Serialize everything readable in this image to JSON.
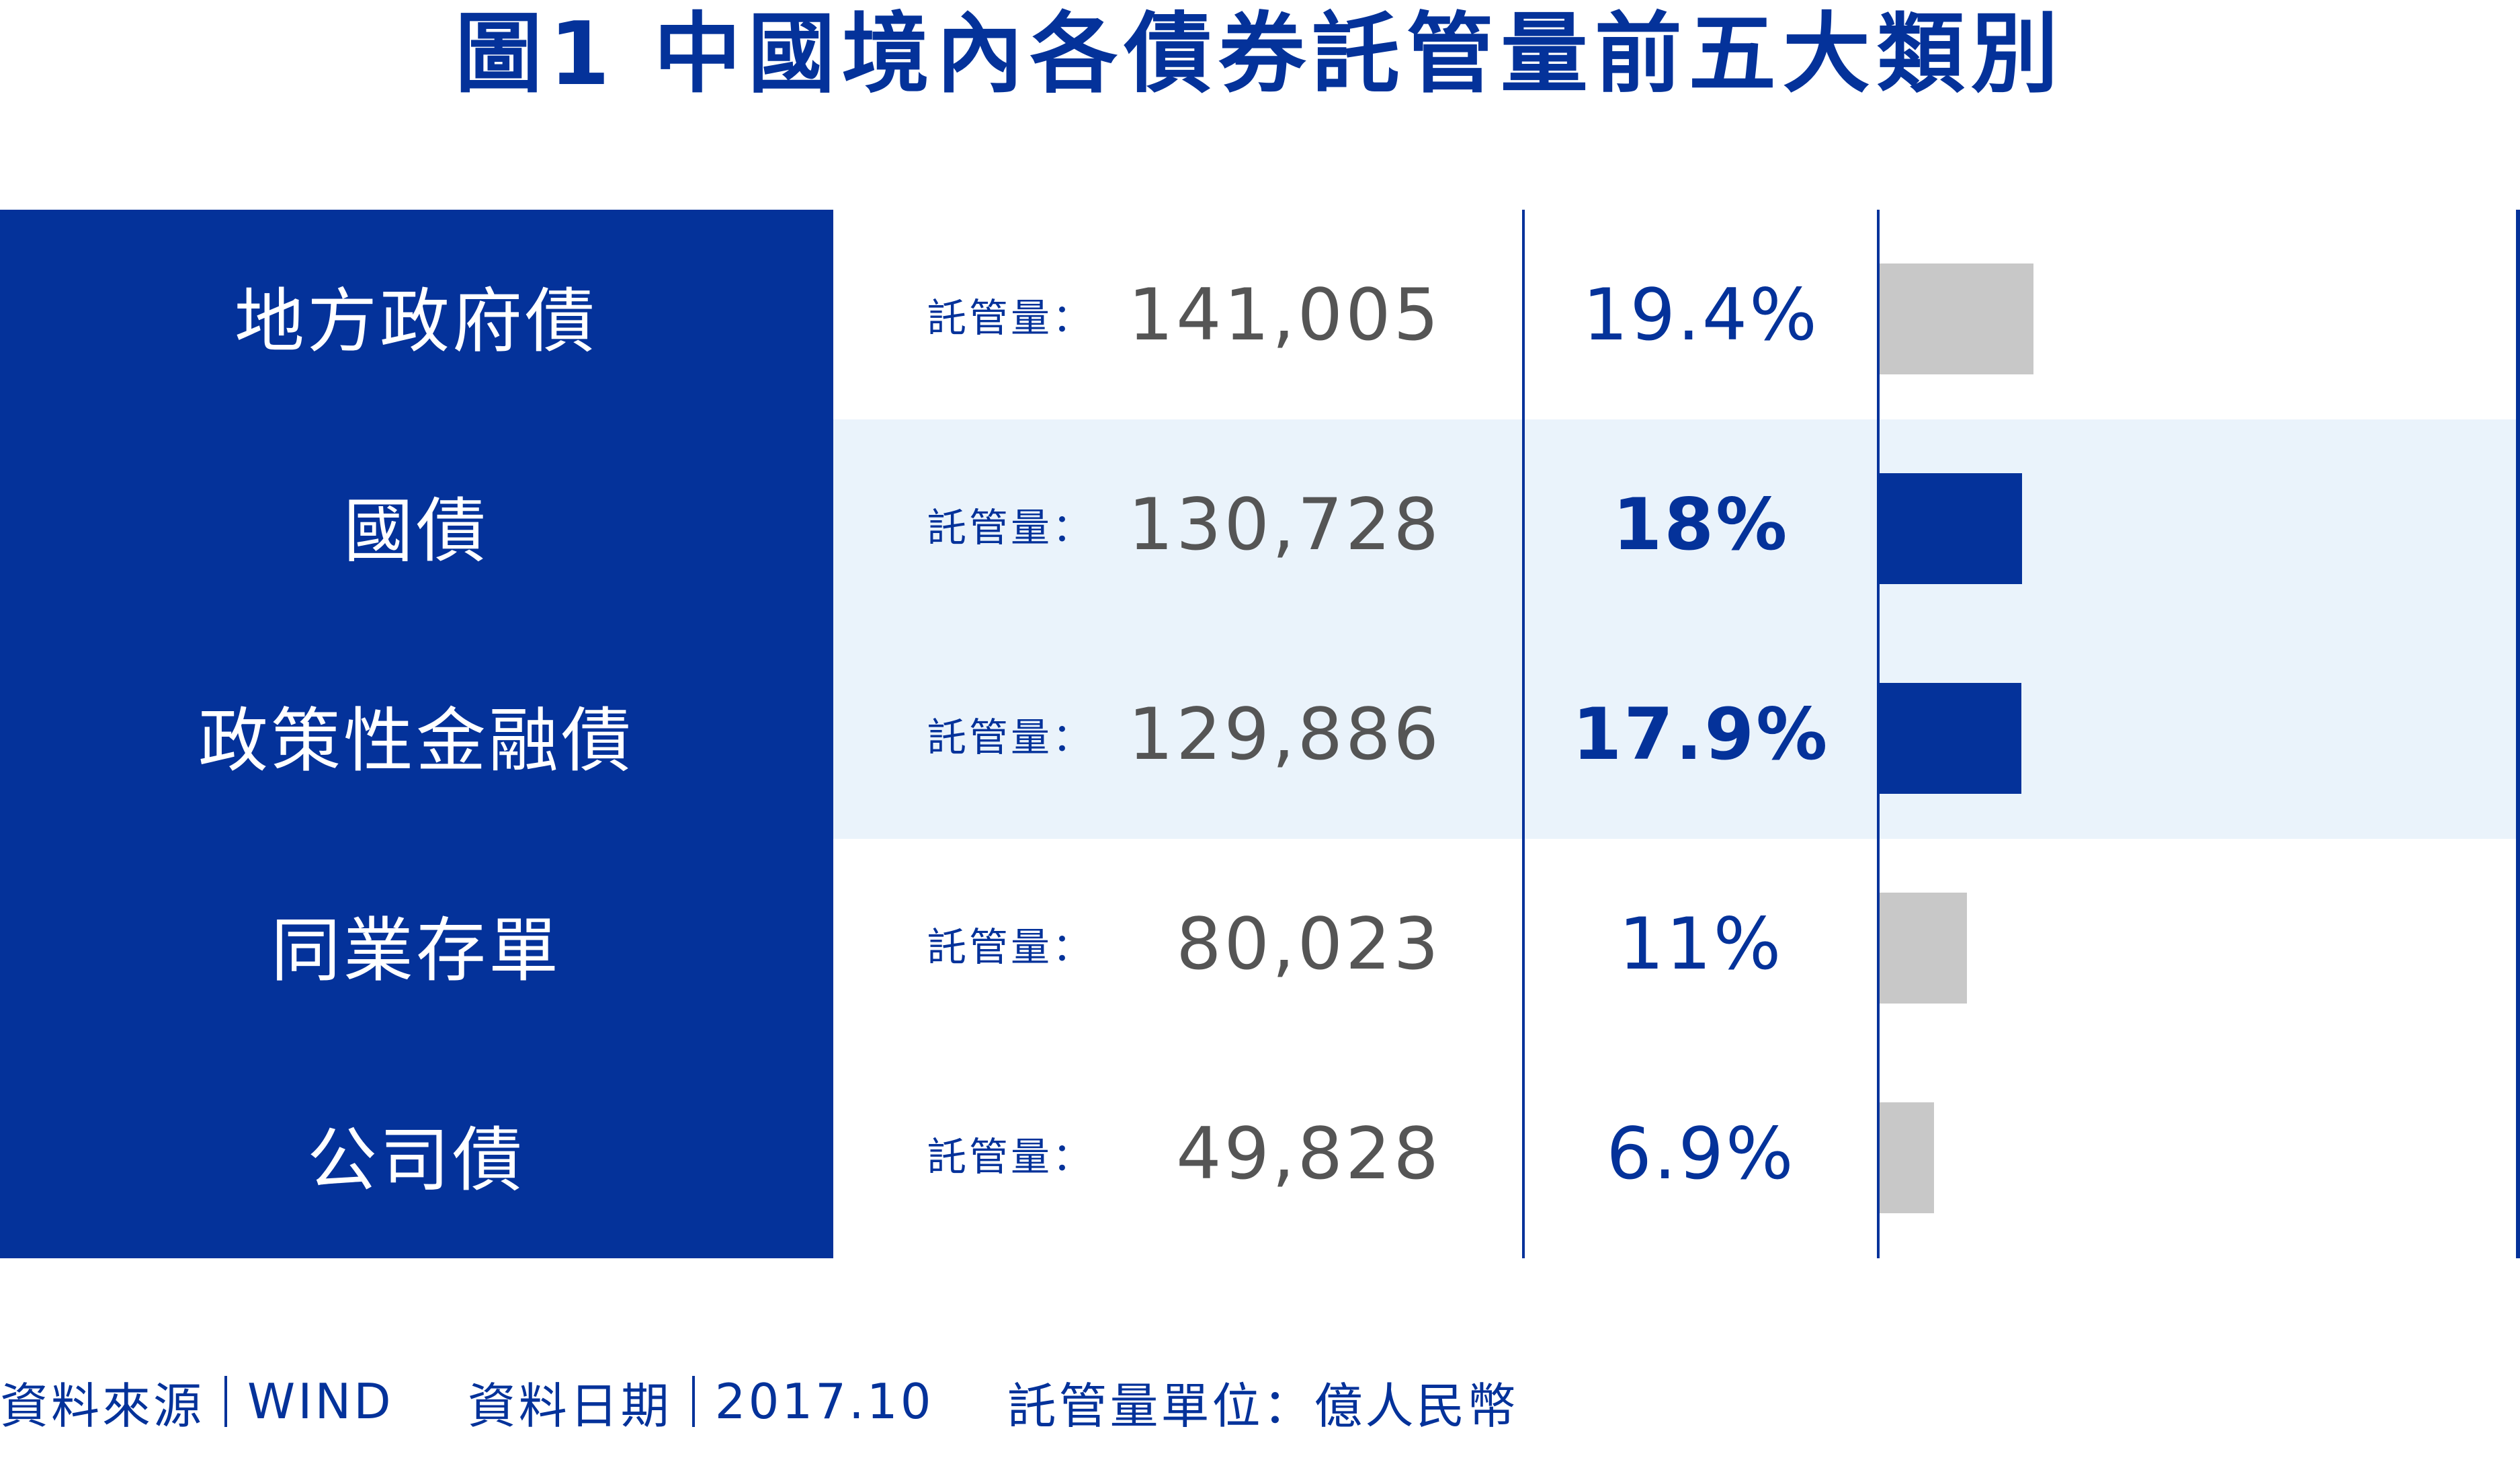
{
  "title": "圖1  中國境內各債券託管量前五大類別",
  "colors": {
    "navy": "#04329a",
    "highlight_bg": "#eaf3fb",
    "grey_bar": "#c8c8c8"
  },
  "chart_data": {
    "type": "table",
    "title": "圖1  中國境內各債券託管量前五大類別",
    "value_label": "託管量：",
    "rows": [
      {
        "category": "地方政府債",
        "value_text": "141,005",
        "value": 141005,
        "share_text": "19.4%",
        "share": 19.4,
        "highlighted": false,
        "bar_color": "#c8c8c8"
      },
      {
        "category": "國債",
        "value_text": "130,728",
        "value": 130728,
        "share_text": "18%",
        "share": 18,
        "highlighted": true,
        "bar_color": "#04329a"
      },
      {
        "category": "政策性金融債",
        "value_text": "129,886",
        "value": 129886,
        "share_text": "17.9%",
        "share": 17.9,
        "highlighted": true,
        "bar_color": "#04329a"
      },
      {
        "category": "同業存單",
        "value_text": "80,023",
        "value": 80023,
        "share_text": "11%",
        "share": 11,
        "highlighted": false,
        "bar_color": "#c8c8c8"
      },
      {
        "category": "公司債",
        "value_text": "49,828",
        "value": 49828,
        "share_text": "6.9%",
        "share": 6.9,
        "highlighted": false,
        "bar_color": "#c8c8c8"
      }
    ]
  },
  "footer": {
    "source_label": "資料來源",
    "source_value": "WIND",
    "date_label": "資料日期",
    "date_value": "2017.10",
    "unit_text": "託管量單位：億人民幣"
  }
}
